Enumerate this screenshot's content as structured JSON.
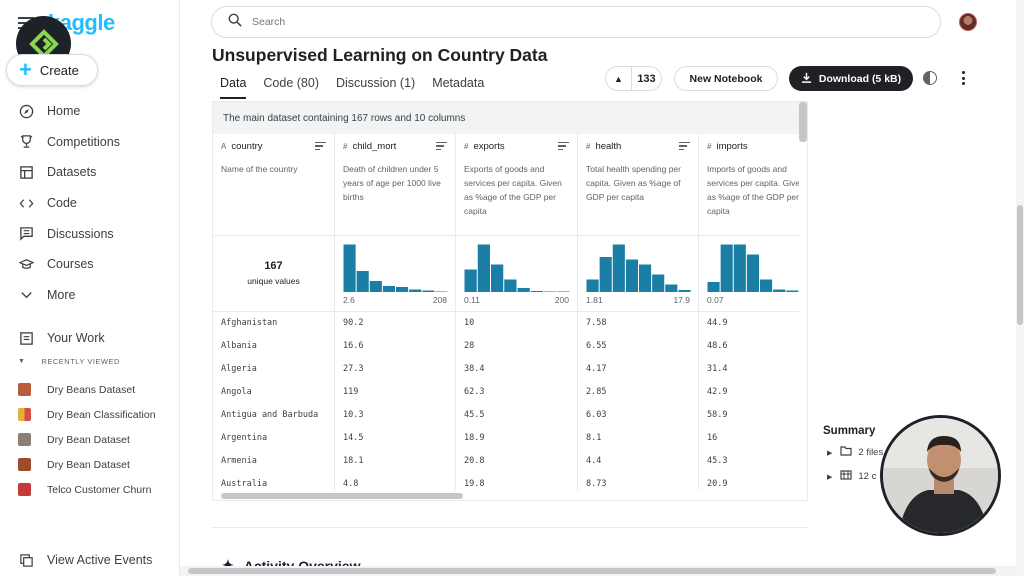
{
  "sidebar": {
    "logo": "kaggle",
    "create_label": "Create",
    "nav": [
      {
        "label": "Home",
        "icon": "compass-icon"
      },
      {
        "label": "Competitions",
        "icon": "trophy-icon"
      },
      {
        "label": "Datasets",
        "icon": "table-icon"
      },
      {
        "label": "Code",
        "icon": "code-icon"
      },
      {
        "label": "Discussions",
        "icon": "comment-icon"
      },
      {
        "label": "Courses",
        "icon": "graduation-cap-icon"
      },
      {
        "label": "More",
        "icon": "chevron-down-icon"
      }
    ],
    "your_work": "Your Work",
    "recently_viewed": "RECENTLY VIEWED",
    "recent": [
      {
        "label": "Dry Beans Dataset",
        "color": "#b85c3c"
      },
      {
        "label": "Dry Bean Classification",
        "color": "#e0b33a"
      },
      {
        "label": "Dry Bean Dataset",
        "color": "#8a7f76"
      },
      {
        "label": "Dry Bean Dataset",
        "color": "#a04a2c"
      },
      {
        "label": "Telco Customer Churn",
        "color": "#c43a3a"
      }
    ],
    "view_events": "View Active Events"
  },
  "search": {
    "placeholder": "Search"
  },
  "page": {
    "title": "Unsupervised Learning on Country Data",
    "tabs": [
      "Data",
      "Code (80)",
      "Discussion (1)",
      "Metadata"
    ],
    "vote_count": "133",
    "new_notebook": "New Notebook",
    "download": "Download (5 kB)"
  },
  "dataset": {
    "header": "The main dataset containing 167 rows and 10 columns",
    "columns": [
      {
        "type": "A",
        "name": "country",
        "desc": "Name of the country",
        "unique_num": "167",
        "unique_label": "unique values"
      },
      {
        "type": "#",
        "name": "child_mort",
        "desc": "Death of children under 5 years of age per 1000 live births",
        "min": "2.6",
        "max": "208",
        "hist": [
          0.95,
          0.42,
          0.22,
          0.12,
          0.1,
          0.05,
          0.03,
          0.01
        ]
      },
      {
        "type": "#",
        "name": "exports",
        "desc": "Exports of goods and services per capita. Given as %age of the GDP per capita",
        "min": "0.11",
        "max": "200",
        "hist": [
          0.45,
          0.95,
          0.55,
          0.25,
          0.08,
          0.02,
          0.01,
          0.01
        ]
      },
      {
        "type": "#",
        "name": "health",
        "desc": "Total health spending per capita. Given as %age of GDP per capita",
        "min": "1.81",
        "max": "17.9",
        "hist": [
          0.25,
          0.7,
          0.95,
          0.65,
          0.55,
          0.35,
          0.15,
          0.04
        ]
      },
      {
        "type": "#",
        "name": "imports",
        "desc": "Imports of goods and services per capita. Given as %age of the GDP per capita",
        "min": "0.07",
        "max": "",
        "hist": [
          0.2,
          0.95,
          0.95,
          0.75,
          0.25,
          0.05,
          0.03,
          0.01
        ]
      }
    ],
    "rows": [
      [
        "Afghanistan",
        "90.2",
        "10",
        "7.58",
        "44.9"
      ],
      [
        "Albania",
        "16.6",
        "28",
        "6.55",
        "48.6"
      ],
      [
        "Algeria",
        "27.3",
        "38.4",
        "4.17",
        "31.4"
      ],
      [
        "Angola",
        "119",
        "62.3",
        "2.85",
        "42.9"
      ],
      [
        "Antigua and Barbuda",
        "10.3",
        "45.5",
        "6.03",
        "58.9"
      ],
      [
        "Argentina",
        "14.5",
        "18.9",
        "8.1",
        "16"
      ],
      [
        "Armenia",
        "18.1",
        "20.8",
        "4.4",
        "45.3"
      ],
      [
        "Australia",
        "4.8",
        "19.8",
        "8.73",
        "20.9"
      ]
    ]
  },
  "summary": {
    "title": "Summary",
    "items": [
      "2 files",
      "12 c"
    ]
  },
  "activity_title": "Activity Overview",
  "colors": {
    "accent": "#20beff",
    "hist": "#1b7fa5"
  }
}
